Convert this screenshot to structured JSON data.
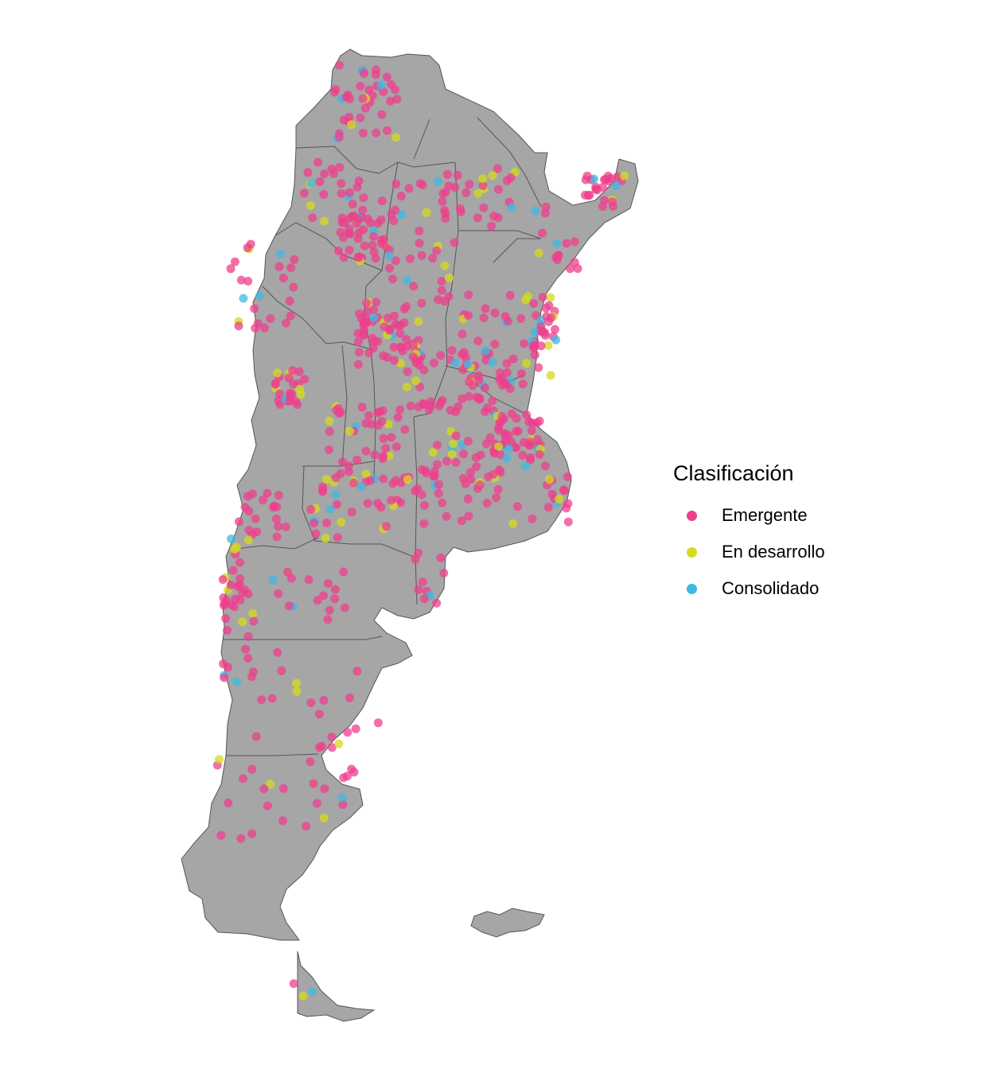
{
  "legend": {
    "title": "Clasificación",
    "items": [
      {
        "label": "Emergente",
        "color": "#EE3F8C"
      },
      {
        "label": "En desarrollo",
        "color": "#D4DB1C"
      },
      {
        "label": "Consolidado",
        "color": "#3FB8E3"
      }
    ]
  },
  "map": {
    "land_color": "#A6A6A6",
    "border_color": "#555555"
  }
}
